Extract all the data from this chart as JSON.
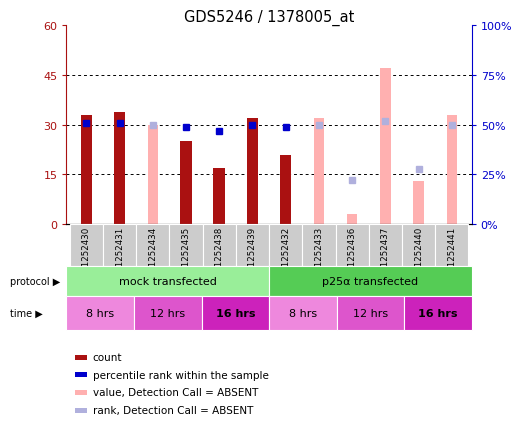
{
  "title": "GDS5246 / 1378005_at",
  "samples": [
    "GSM1252430",
    "GSM1252431",
    "GSM1252434",
    "GSM1252435",
    "GSM1252438",
    "GSM1252439",
    "GSM1252432",
    "GSM1252433",
    "GSM1252436",
    "GSM1252437",
    "GSM1252440",
    "GSM1252441"
  ],
  "count_values": [
    33,
    34,
    null,
    25,
    17,
    32,
    21,
    null,
    null,
    null,
    null,
    null
  ],
  "rank_values": [
    51,
    51,
    null,
    49,
    47,
    50,
    49,
    null,
    null,
    null,
    null,
    null
  ],
  "absent_value_values": [
    null,
    null,
    30,
    null,
    null,
    null,
    null,
    32,
    3,
    47,
    13,
    33
  ],
  "absent_rank_values": [
    null,
    null,
    50,
    null,
    null,
    null,
    null,
    50,
    22,
    52,
    28,
    50
  ],
  "ylim_left": [
    0,
    60
  ],
  "ylim_right": [
    0,
    100
  ],
  "yticks_left": [
    0,
    15,
    30,
    45,
    60
  ],
  "ytick_labels_left": [
    "0",
    "15",
    "30",
    "45",
    "60"
  ],
  "yticks_right": [
    0,
    25,
    50,
    75,
    100
  ],
  "ytick_labels_right": [
    "0%",
    "25%",
    "50%",
    "75%",
    "100%"
  ],
  "bar_width": 0.35,
  "count_color": "#AA1111",
  "rank_color": "#0000CC",
  "absent_value_color": "#FFB0B0",
  "absent_rank_color": "#B0B0DD",
  "bg_color": "#CCCCCC",
  "protocol_groups": [
    {
      "label": "mock transfected",
      "start": 0,
      "end": 5,
      "color": "#99EE99"
    },
    {
      "label": "p25α transfected",
      "start": 6,
      "end": 11,
      "color": "#55CC55"
    }
  ],
  "time_groups": [
    {
      "label": "8 hrs",
      "start": 0,
      "end": 1,
      "color": "#EE88DD",
      "bold": false
    },
    {
      "label": "12 hrs",
      "start": 2,
      "end": 3,
      "color": "#DD55CC",
      "bold": false
    },
    {
      "label": "16 hrs",
      "start": 4,
      "end": 5,
      "color": "#CC22BB",
      "bold": true
    },
    {
      "label": "8 hrs",
      "start": 6,
      "end": 7,
      "color": "#EE88DD",
      "bold": false
    },
    {
      "label": "12 hrs",
      "start": 8,
      "end": 9,
      "color": "#DD55CC",
      "bold": false
    },
    {
      "label": "16 hrs",
      "start": 10,
      "end": 11,
      "color": "#CC22BB",
      "bold": true
    }
  ],
  "legend_items": [
    {
      "label": "count",
      "color": "#AA1111"
    },
    {
      "label": "percentile rank within the sample",
      "color": "#0000CC"
    },
    {
      "label": "value, Detection Call = ABSENT",
      "color": "#FFB0B0"
    },
    {
      "label": "rank, Detection Call = ABSENT",
      "color": "#B0B0DD"
    }
  ]
}
